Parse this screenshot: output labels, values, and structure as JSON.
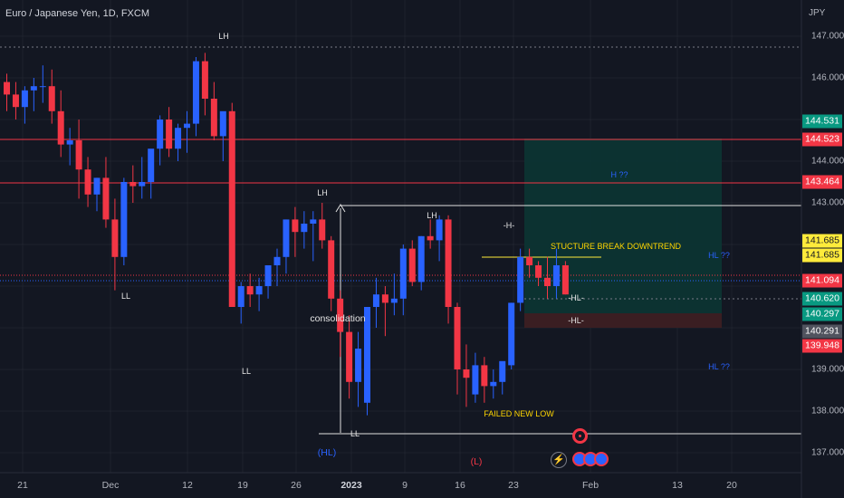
{
  "header": {
    "symbol": "Euro / Japanese Yen, 1D, FXCM",
    "unit": "JPY"
  },
  "price_axis": [
    "147.000",
    "146.000",
    "144.000",
    "143.000",
    "139.000",
    "138.000",
    "137.000"
  ],
  "date_axis": {
    "labels": [
      "21",
      "Dec",
      "12",
      "19",
      "26",
      "2023",
      "9",
      "16",
      "23",
      "Feb",
      "13",
      "20"
    ],
    "bold": [
      "2023"
    ]
  },
  "price_tags": [
    {
      "label": "144.531",
      "bg": "#089981",
      "fg": "#ffffff"
    },
    {
      "label": "144.523",
      "bg": "#f23645",
      "fg": "#ffffff"
    },
    {
      "label": "143.464",
      "bg": "#f23645",
      "fg": "#ffffff"
    },
    {
      "label": "141.685",
      "bg": "#ffeb3b",
      "fg": "#131722"
    },
    {
      "label": "141.685",
      "bg": "#ffeb3b",
      "fg": "#131722"
    },
    {
      "label": "141.094",
      "bg": "#f23645",
      "fg": "#ffffff"
    },
    {
      "label": "140.620",
      "bg": "#089981",
      "fg": "#ffffff"
    },
    {
      "label": "140.297",
      "bg": "#089981",
      "fg": "#ffffff"
    },
    {
      "label": "140.291",
      "bg": "#50535e",
      "fg": "#ffffff"
    },
    {
      "label": "139.948",
      "bg": "#f23645",
      "fg": "#ffffff"
    }
  ],
  "annotations": [
    {
      "text": "LH",
      "style": "white"
    },
    {
      "text": "LL",
      "style": "white"
    },
    {
      "text": "LL",
      "style": "white"
    },
    {
      "text": "LH",
      "style": "white"
    },
    {
      "text": "LH",
      "style": "white"
    },
    {
      "text": "-H-",
      "style": "white"
    },
    {
      "text": "LL",
      "style": "white"
    },
    {
      "text": "consolidation",
      "style": "white big"
    },
    {
      "text": "STUCTURE BREAK DOWNTREND",
      "style": "yellow"
    },
    {
      "text": "FAILED NEW LOW",
      "style": "yellow"
    },
    {
      "text": "-HL-",
      "style": "white"
    },
    {
      "text": "-HL-",
      "style": "white"
    },
    {
      "text": "H ??",
      "style": "blue"
    },
    {
      "text": "HL ??",
      "style": "blue"
    },
    {
      "text": "HL ??",
      "style": "blue"
    },
    {
      "text": "(HL)",
      "style": "blue big"
    },
    {
      "text": "(L)",
      "style": "red"
    }
  ],
  "colors": {
    "background": "#131722",
    "up": "#2962ff",
    "down": "#f23645",
    "grid": "#2a2e39",
    "resistance": "#f23645",
    "target_zone": "#0c3533",
    "stop_zone": "#3a1e22"
  },
  "icons": [
    "lightning-icon",
    "target-event-icon",
    "economic-event-icon"
  ]
}
